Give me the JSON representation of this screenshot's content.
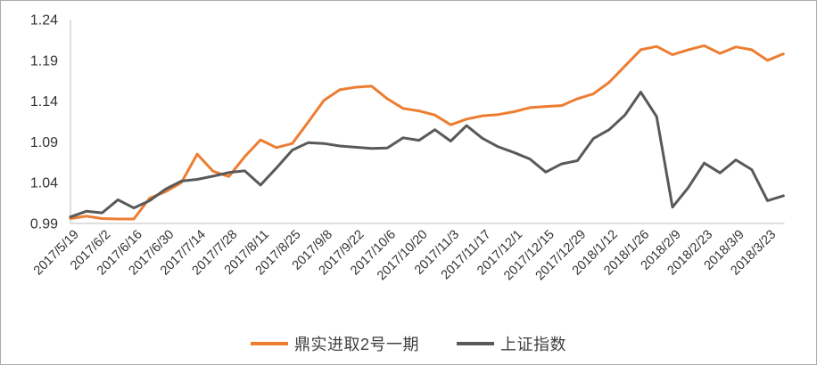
{
  "chart_data": {
    "type": "line",
    "title": "",
    "x_axis": {
      "tick_labels": [
        "2017/5/19",
        "2017/6/2",
        "2017/6/16",
        "2017/6/30",
        "2017/7/14",
        "2017/7/28",
        "2017/8/11",
        "2017/8/25",
        "2017/9/8",
        "2017/9/22",
        "2017/10/6",
        "2017/10/20",
        "2017/11/3",
        "2017/11/17",
        "2017/12/1",
        "2017/12/15",
        "2017/12/29",
        "2018/1/12",
        "2018/1/26",
        "2018/2/9",
        "2018/2/23",
        "2018/3/9",
        "2018/3/23"
      ],
      "points_per_label": 2,
      "label_rotation_deg": 45
    },
    "y_axis": {
      "tick_labels": [
        "0.99",
        "1.04",
        "1.09",
        "1.14",
        "1.19",
        "1.24"
      ],
      "min": 0.99,
      "max": 1.24
    },
    "grid": false,
    "legend_position": "bottom",
    "colors": {
      "axis_line": "#bfbfbf",
      "tick_text": "#333333",
      "legend_text": "#404040",
      "border": "#ababab"
    },
    "series": [
      {
        "name": "鼎实进取2号一期",
        "color": "#ED7D31",
        "values": [
          0.996,
          0.999,
          0.996,
          0.9955,
          0.9955,
          1.021,
          1.029,
          1.04,
          1.075,
          1.054,
          1.0475,
          1.072,
          1.0925,
          1.083,
          1.088,
          1.114,
          1.141,
          1.154,
          1.157,
          1.1585,
          1.143,
          1.131,
          1.128,
          1.123,
          1.111,
          1.118,
          1.122,
          1.1235,
          1.127,
          1.132,
          1.1335,
          1.1345,
          1.143,
          1.149,
          1.163,
          1.183,
          1.203,
          1.207,
          1.197,
          1.203,
          1.208,
          1.1985,
          1.2065,
          1.203,
          1.19,
          1.198
        ]
      },
      {
        "name": "上证指数",
        "color": "#595959",
        "values": [
          0.998,
          1.005,
          1.003,
          1.019,
          1.009,
          1.018,
          1.032,
          1.042,
          1.044,
          1.048,
          1.0525,
          1.0545,
          1.037,
          1.058,
          1.08,
          1.089,
          1.088,
          1.085,
          1.0835,
          1.082,
          1.0825,
          1.095,
          1.092,
          1.105,
          1.091,
          1.11,
          1.0945,
          1.084,
          1.077,
          1.069,
          1.053,
          1.063,
          1.067,
          1.094,
          1.105,
          1.123,
          1.151,
          1.121,
          1.01,
          1.034,
          1.064,
          1.052,
          1.068,
          1.056,
          1.018,
          1.024
        ]
      }
    ]
  }
}
